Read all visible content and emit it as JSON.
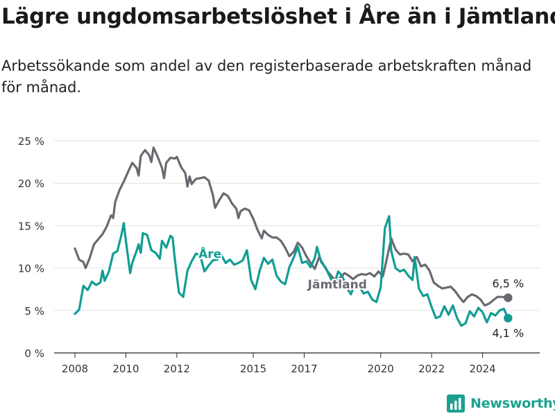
{
  "header": {
    "title": "Lägre ungdomsarbetslöshet i Åre än i Jämtland",
    "subtitle": "Arbetssökande som andel av den registerbaserade arbetskraften månad för månad."
  },
  "brand": {
    "name": "Newsworthy"
  },
  "colors": {
    "are": "#109d94",
    "jamtland": "#696970",
    "grid": "#e2e2e2",
    "axis": "#222222"
  },
  "chart_data": {
    "type": "line",
    "x_ticks": [
      "2008",
      "2010",
      "2012",
      "2015",
      "2017",
      "2020",
      "2022",
      "2024"
    ],
    "y_ticks": [
      "0 %",
      "5 %",
      "10 %",
      "15 %",
      "20 %",
      "25 %"
    ],
    "y_tick_values": [
      0,
      5,
      10,
      15,
      20,
      25
    ],
    "ylim": [
      0,
      25
    ],
    "xlim": [
      "2008-01",
      "2025-12"
    ],
    "grid": true,
    "series": [
      {
        "name": "Jämtland",
        "label": "Jämtland",
        "color": "#696970",
        "end_label": "6,5 %",
        "points": [
          [
            "2008-01",
            12.3
          ],
          [
            "2008-03",
            11.0
          ],
          [
            "2008-05",
            10.7
          ],
          [
            "2008-06",
            10.0
          ],
          [
            "2008-08",
            11.2
          ],
          [
            "2008-10",
            12.8
          ],
          [
            "2008-12",
            13.4
          ],
          [
            "2009-02",
            14.0
          ],
          [
            "2009-04",
            14.9
          ],
          [
            "2009-06",
            16.2
          ],
          [
            "2009-07",
            15.9
          ],
          [
            "2009-08",
            17.8
          ],
          [
            "2009-10",
            19.2
          ],
          [
            "2009-12",
            20.2
          ],
          [
            "2010-02",
            21.3
          ],
          [
            "2010-04",
            22.4
          ],
          [
            "2010-06",
            21.8
          ],
          [
            "2010-07",
            20.9
          ],
          [
            "2010-08",
            23.2
          ],
          [
            "2010-10",
            23.9
          ],
          [
            "2010-12",
            23.3
          ],
          [
            "2011-01",
            22.5
          ],
          [
            "2011-02",
            24.2
          ],
          [
            "2011-04",
            23.1
          ],
          [
            "2011-06",
            21.8
          ],
          [
            "2011-07",
            20.6
          ],
          [
            "2011-08",
            22.4
          ],
          [
            "2011-10",
            23.0
          ],
          [
            "2011-12",
            22.9
          ],
          [
            "2012-01",
            23.1
          ],
          [
            "2012-03",
            21.9
          ],
          [
            "2012-05",
            21.2
          ],
          [
            "2012-06",
            19.6
          ],
          [
            "2012-07",
            20.8
          ],
          [
            "2012-08",
            19.9
          ],
          [
            "2012-10",
            20.5
          ],
          [
            "2012-12",
            20.6
          ],
          [
            "2013-02",
            20.7
          ],
          [
            "2013-04",
            20.3
          ],
          [
            "2013-06",
            18.6
          ],
          [
            "2013-07",
            17.1
          ],
          [
            "2013-09",
            18.0
          ],
          [
            "2013-11",
            18.8
          ],
          [
            "2014-01",
            18.5
          ],
          [
            "2014-03",
            17.6
          ],
          [
            "2014-05",
            17.0
          ],
          [
            "2014-06",
            15.9
          ],
          [
            "2014-07",
            16.7
          ],
          [
            "2014-09",
            17.0
          ],
          [
            "2014-11",
            16.8
          ],
          [
            "2015-01",
            15.8
          ],
          [
            "2015-03",
            14.5
          ],
          [
            "2015-05",
            13.5
          ],
          [
            "2015-06",
            14.4
          ],
          [
            "2015-08",
            13.9
          ],
          [
            "2015-10",
            13.6
          ],
          [
            "2015-12",
            13.6
          ],
          [
            "2016-02",
            13.2
          ],
          [
            "2016-04",
            12.4
          ],
          [
            "2016-06",
            11.4
          ],
          [
            "2016-08",
            11.9
          ],
          [
            "2016-10",
            13.0
          ],
          [
            "2016-12",
            12.4
          ],
          [
            "2017-02",
            11.4
          ],
          [
            "2017-04",
            10.6
          ],
          [
            "2017-06",
            9.9
          ],
          [
            "2017-08",
            11.3
          ],
          [
            "2017-10",
            10.4
          ],
          [
            "2017-12",
            9.6
          ],
          [
            "2018-02",
            9.0
          ],
          [
            "2018-04",
            8.4
          ],
          [
            "2018-06",
            8.9
          ],
          [
            "2018-08",
            9.4
          ],
          [
            "2018-10",
            9.1
          ],
          [
            "2018-12",
            8.7
          ],
          [
            "2019-02",
            9.1
          ],
          [
            "2019-04",
            9.3
          ],
          [
            "2019-06",
            9.2
          ],
          [
            "2019-08",
            9.4
          ],
          [
            "2019-10",
            9.0
          ],
          [
            "2019-12",
            9.6
          ],
          [
            "2020-02",
            9.0
          ],
          [
            "2020-04",
            11.2
          ],
          [
            "2020-06",
            13.5
          ],
          [
            "2020-08",
            12.2
          ],
          [
            "2020-10",
            11.6
          ],
          [
            "2020-12",
            11.7
          ],
          [
            "2021-02",
            11.6
          ],
          [
            "2021-04",
            10.8
          ],
          [
            "2021-06",
            11.3
          ],
          [
            "2021-08",
            10.2
          ],
          [
            "2021-10",
            10.4
          ],
          [
            "2021-12",
            9.7
          ],
          [
            "2022-02",
            8.3
          ],
          [
            "2022-04",
            7.9
          ],
          [
            "2022-06",
            7.6
          ],
          [
            "2022-08",
            7.7
          ],
          [
            "2022-10",
            7.8
          ],
          [
            "2022-12",
            7.3
          ],
          [
            "2023-02",
            6.6
          ],
          [
            "2023-04",
            6.0
          ],
          [
            "2023-06",
            6.6
          ],
          [
            "2023-08",
            6.9
          ],
          [
            "2023-10",
            6.7
          ],
          [
            "2023-12",
            6.3
          ],
          [
            "2024-02",
            5.6
          ],
          [
            "2024-04",
            5.8
          ],
          [
            "2024-06",
            6.2
          ],
          [
            "2024-08",
            6.6
          ],
          [
            "2024-10",
            6.6
          ],
          [
            "2025-01",
            6.5
          ]
        ]
      },
      {
        "name": "Åre",
        "label": "Åre",
        "color": "#109d94",
        "end_label": "4,1 %",
        "points": [
          [
            "2008-01",
            4.6
          ],
          [
            "2008-03",
            5.1
          ],
          [
            "2008-05",
            7.9
          ],
          [
            "2008-07",
            7.4
          ],
          [
            "2008-09",
            8.4
          ],
          [
            "2008-11",
            8.0
          ],
          [
            "2009-01",
            8.3
          ],
          [
            "2009-02",
            9.7
          ],
          [
            "2009-03",
            8.5
          ],
          [
            "2009-05",
            9.6
          ],
          [
            "2009-07",
            11.7
          ],
          [
            "2009-09",
            12.0
          ],
          [
            "2009-11",
            14.0
          ],
          [
            "2009-12",
            15.3
          ],
          [
            "2010-01",
            13.2
          ],
          [
            "2010-03",
            9.4
          ],
          [
            "2010-04",
            10.6
          ],
          [
            "2010-06",
            12.0
          ],
          [
            "2010-07",
            12.8
          ],
          [
            "2010-08",
            11.8
          ],
          [
            "2010-09",
            14.1
          ],
          [
            "2010-11",
            13.9
          ],
          [
            "2011-01",
            12.1
          ],
          [
            "2011-03",
            11.8
          ],
          [
            "2011-05",
            11.1
          ],
          [
            "2011-06",
            13.2
          ],
          [
            "2011-08",
            12.4
          ],
          [
            "2011-10",
            13.8
          ],
          [
            "2011-11",
            13.6
          ],
          [
            "2011-12",
            11.2
          ],
          [
            "2012-01",
            9.1
          ],
          [
            "2012-02",
            7.1
          ],
          [
            "2012-04",
            6.6
          ],
          [
            "2012-06",
            9.7
          ],
          [
            "2012-08",
            10.8
          ],
          [
            "2012-10",
            11.7
          ],
          [
            "2012-12",
            11.5
          ],
          [
            "2013-02",
            9.6
          ],
          [
            "2013-04",
            10.3
          ],
          [
            "2013-06",
            10.9
          ],
          [
            "2013-08",
            11.0
          ],
          [
            "2013-10",
            11.5
          ],
          [
            "2013-12",
            10.6
          ],
          [
            "2014-02",
            11.0
          ],
          [
            "2014-04",
            10.4
          ],
          [
            "2014-06",
            10.6
          ],
          [
            "2014-08",
            10.9
          ],
          [
            "2014-10",
            12.1
          ],
          [
            "2014-12",
            8.6
          ],
          [
            "2015-02",
            7.5
          ],
          [
            "2015-04",
            9.7
          ],
          [
            "2015-06",
            11.2
          ],
          [
            "2015-08",
            10.5
          ],
          [
            "2015-10",
            11.0
          ],
          [
            "2015-12",
            9.1
          ],
          [
            "2016-02",
            8.4
          ],
          [
            "2016-04",
            8.1
          ],
          [
            "2016-06",
            10.1
          ],
          [
            "2016-08",
            11.2
          ],
          [
            "2016-10",
            12.5
          ],
          [
            "2016-12",
            10.6
          ],
          [
            "2017-02",
            10.8
          ],
          [
            "2017-04",
            10.1
          ],
          [
            "2017-06",
            11.2
          ],
          [
            "2017-07",
            12.5
          ],
          [
            "2017-09",
            10.7
          ],
          [
            "2017-11",
            10.1
          ],
          [
            "2018-01",
            9.0
          ],
          [
            "2018-03",
            8.0
          ],
          [
            "2018-05",
            9.6
          ],
          [
            "2018-07",
            9.0
          ],
          [
            "2018-09",
            7.7
          ],
          [
            "2018-11",
            6.9
          ],
          [
            "2019-01",
            8.3
          ],
          [
            "2019-03",
            7.8
          ],
          [
            "2019-05",
            7.0
          ],
          [
            "2019-07",
            7.2
          ],
          [
            "2019-09",
            6.3
          ],
          [
            "2019-11",
            6.0
          ],
          [
            "2020-01",
            7.7
          ],
          [
            "2020-03",
            14.7
          ],
          [
            "2020-05",
            16.1
          ],
          [
            "2020-06",
            12.0
          ],
          [
            "2020-08",
            10.0
          ],
          [
            "2020-10",
            9.6
          ],
          [
            "2020-12",
            9.8
          ],
          [
            "2021-02",
            9.1
          ],
          [
            "2021-04",
            8.6
          ],
          [
            "2021-05",
            11.3
          ],
          [
            "2021-07",
            7.6
          ],
          [
            "2021-09",
            6.7
          ],
          [
            "2021-11",
            6.9
          ],
          [
            "2022-01",
            5.4
          ],
          [
            "2022-03",
            4.1
          ],
          [
            "2022-05",
            4.3
          ],
          [
            "2022-07",
            5.5
          ],
          [
            "2022-09",
            4.5
          ],
          [
            "2022-11",
            5.6
          ],
          [
            "2023-01",
            4.1
          ],
          [
            "2023-03",
            3.2
          ],
          [
            "2023-05",
            3.5
          ],
          [
            "2023-07",
            4.9
          ],
          [
            "2023-09",
            4.3
          ],
          [
            "2023-11",
            5.3
          ],
          [
            "2024-01",
            4.8
          ],
          [
            "2024-03",
            3.6
          ],
          [
            "2024-05",
            4.7
          ],
          [
            "2024-07",
            4.4
          ],
          [
            "2024-09",
            5.0
          ],
          [
            "2024-11",
            5.2
          ],
          [
            "2025-01",
            4.1
          ]
        ]
      }
    ]
  }
}
